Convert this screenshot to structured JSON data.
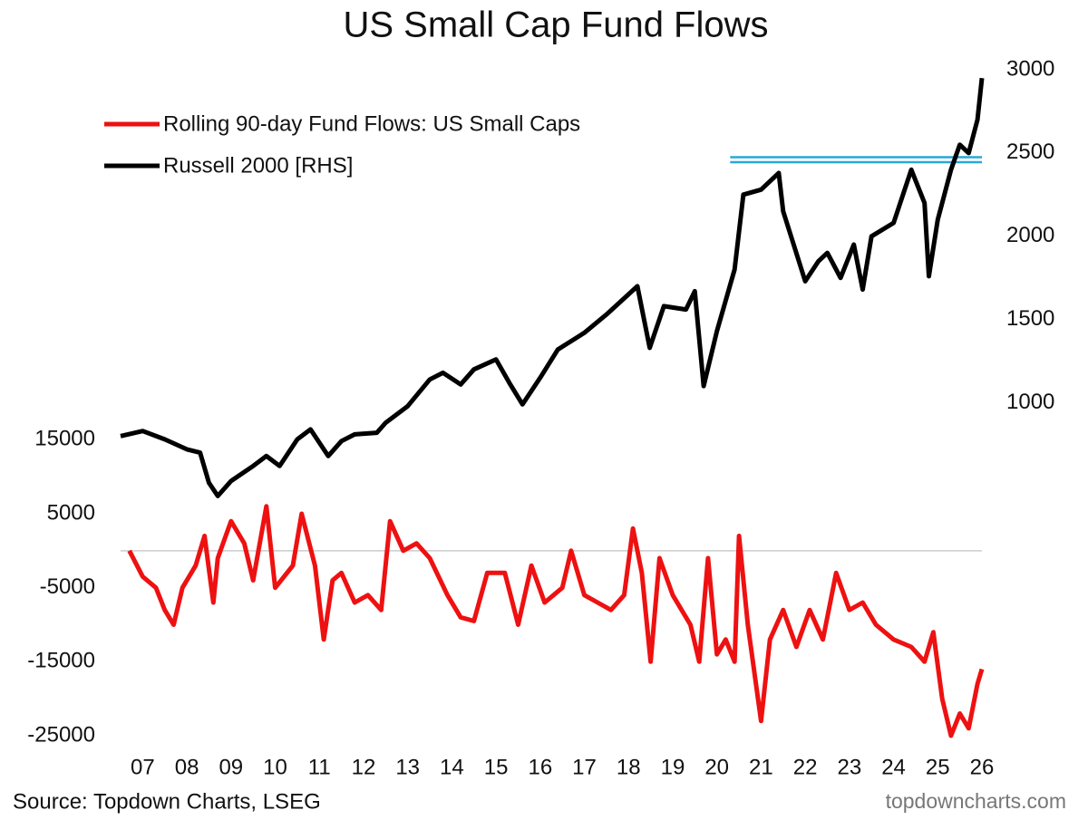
{
  "chart_data": {
    "type": "line",
    "title": "US Small Cap Fund Flows",
    "source": "Source: Topdown Charts, LSEG",
    "watermark": "topdowncharts.com",
    "legend": "upper left",
    "xlim": [
      2007,
      2026.5
    ],
    "xticks": [
      {
        "value": 2007.5,
        "label": "07"
      },
      {
        "value": 2008.5,
        "label": "08"
      },
      {
        "value": 2009.5,
        "label": "09"
      },
      {
        "value": 2010.5,
        "label": "10"
      },
      {
        "value": 2011.5,
        "label": "11"
      },
      {
        "value": 2012.5,
        "label": "12"
      },
      {
        "value": 2013.5,
        "label": "13"
      },
      {
        "value": 2014.5,
        "label": "14"
      },
      {
        "value": 2015.5,
        "label": "15"
      },
      {
        "value": 2016.5,
        "label": "16"
      },
      {
        "value": 2017.5,
        "label": "17"
      },
      {
        "value": 2018.5,
        "label": "18"
      },
      {
        "value": 2019.5,
        "label": "19"
      },
      {
        "value": 2020.5,
        "label": "20"
      },
      {
        "value": 2021.5,
        "label": "21"
      },
      {
        "value": 2022.5,
        "label": "22"
      },
      {
        "value": 2023.5,
        "label": "23"
      },
      {
        "value": 2024.5,
        "label": "24"
      },
      {
        "value": 2025.5,
        "label": "25"
      },
      {
        "value": 2026.5,
        "label": "26"
      }
    ],
    "ylim": [
      -25000,
      65000
    ],
    "yticks": [
      -25000,
      -15000,
      -5000,
      5000,
      15000
    ],
    "y2lim": [
      -1000,
      3000
    ],
    "y2ticks": [
      1000,
      1500,
      2000,
      2500,
      3000
    ],
    "zero_line": 0,
    "reference_lines": {
      "color": "#29a8d8",
      "axis": "y2",
      "x": [
        2020.8,
        2026.5
      ],
      "values": [
        2475,
        2445
      ]
    },
    "series": [
      {
        "name": "Rolling 90-day Fund Flows: US Small Caps",
        "color": "#ee1111",
        "axis": "y",
        "x": [
          2007.2,
          2007.5,
          2007.8,
          2008.0,
          2008.2,
          2008.4,
          2008.7,
          2008.9,
          2009.1,
          2009.2,
          2009.5,
          2009.8,
          2010.0,
          2010.3,
          2010.5,
          2010.9,
          2011.1,
          2011.4,
          2011.6,
          2011.8,
          2012.0,
          2012.3,
          2012.6,
          2012.9,
          2013.1,
          2013.4,
          2013.7,
          2014.0,
          2014.4,
          2014.7,
          2015.0,
          2015.3,
          2015.7,
          2016.0,
          2016.3,
          2016.6,
          2017.0,
          2017.2,
          2017.5,
          2017.8,
          2018.1,
          2018.4,
          2018.6,
          2018.8,
          2019.0,
          2019.2,
          2019.5,
          2019.9,
          2020.1,
          2020.3,
          2020.5,
          2020.7,
          2020.9,
          2021.0,
          2021.2,
          2021.5,
          2021.7,
          2022.0,
          2022.3,
          2022.6,
          2022.9,
          2023.2,
          2023.5,
          2023.8,
          2024.1,
          2024.5,
          2024.9,
          2025.2,
          2025.4,
          2025.6,
          2025.8,
          2026.0,
          2026.2,
          2026.4,
          2026.5
        ],
        "values": [
          0,
          -3500,
          -5000,
          -8000,
          -10000,
          -5000,
          -2000,
          2000,
          -7000,
          -1000,
          4000,
          1000,
          -4000,
          6000,
          -5000,
          -2000,
          5000,
          -2000,
          -12000,
          -4000,
          -3000,
          -7000,
          -6000,
          -8000,
          4000,
          0,
          1000,
          -1000,
          -6000,
          -9000,
          -9500,
          -3000,
          -3000,
          -10000,
          -2000,
          -7000,
          -5000,
          0,
          -6000,
          -7000,
          -8000,
          -6000,
          3000,
          -3000,
          -15000,
          -1000,
          -6000,
          -10000,
          -15000,
          -1000,
          -14000,
          -12000,
          -15000,
          2000,
          -10000,
          -23000,
          -12000,
          -8000,
          -13000,
          -8000,
          -12000,
          -3000,
          -8000,
          -7000,
          -10000,
          -12000,
          -13000,
          -15000,
          -11000,
          -20000,
          -25000,
          -22000,
          -24000,
          -18000,
          -16000
        ]
      },
      {
        "name": "Russell 2000 [RHS]",
        "color": "#000000",
        "axis": "y2",
        "x": [
          2007.0,
          2007.5,
          2008.0,
          2008.5,
          2008.8,
          2009.0,
          2009.2,
          2009.5,
          2010.0,
          2010.3,
          2010.6,
          2011.0,
          2011.3,
          2011.7,
          2012.0,
          2012.3,
          2012.8,
          2013.0,
          2013.5,
          2014.0,
          2014.3,
          2014.7,
          2015.0,
          2015.5,
          2015.8,
          2016.1,
          2016.5,
          2016.9,
          2017.5,
          2018.0,
          2018.7,
          2018.98,
          2019.3,
          2019.8,
          2020.0,
          2020.2,
          2020.5,
          2020.9,
          2021.1,
          2021.5,
          2021.9,
          2022.0,
          2022.5,
          2022.8,
          2023.0,
          2023.3,
          2023.6,
          2023.8,
          2024.0,
          2024.5,
          2024.9,
          2025.2,
          2025.3,
          2025.5,
          2025.8,
          2026.0,
          2026.2,
          2026.4,
          2026.5
        ],
        "values": [
          800,
          830,
          780,
          720,
          700,
          520,
          440,
          530,
          620,
          680,
          620,
          780,
          840,
          680,
          770,
          810,
          820,
          880,
          980,
          1140,
          1180,
          1110,
          1200,
          1260,
          1120,
          990,
          1150,
          1320,
          1420,
          1530,
          1700,
          1330,
          1580,
          1560,
          1670,
          1100,
          1430,
          1800,
          2250,
          2280,
          2380,
          2150,
          1730,
          1850,
          1900,
          1750,
          1950,
          1680,
          2000,
          2080,
          2400,
          2200,
          1760,
          2100,
          2400,
          2550,
          2500,
          2700,
          2950
        ]
      }
    ]
  }
}
